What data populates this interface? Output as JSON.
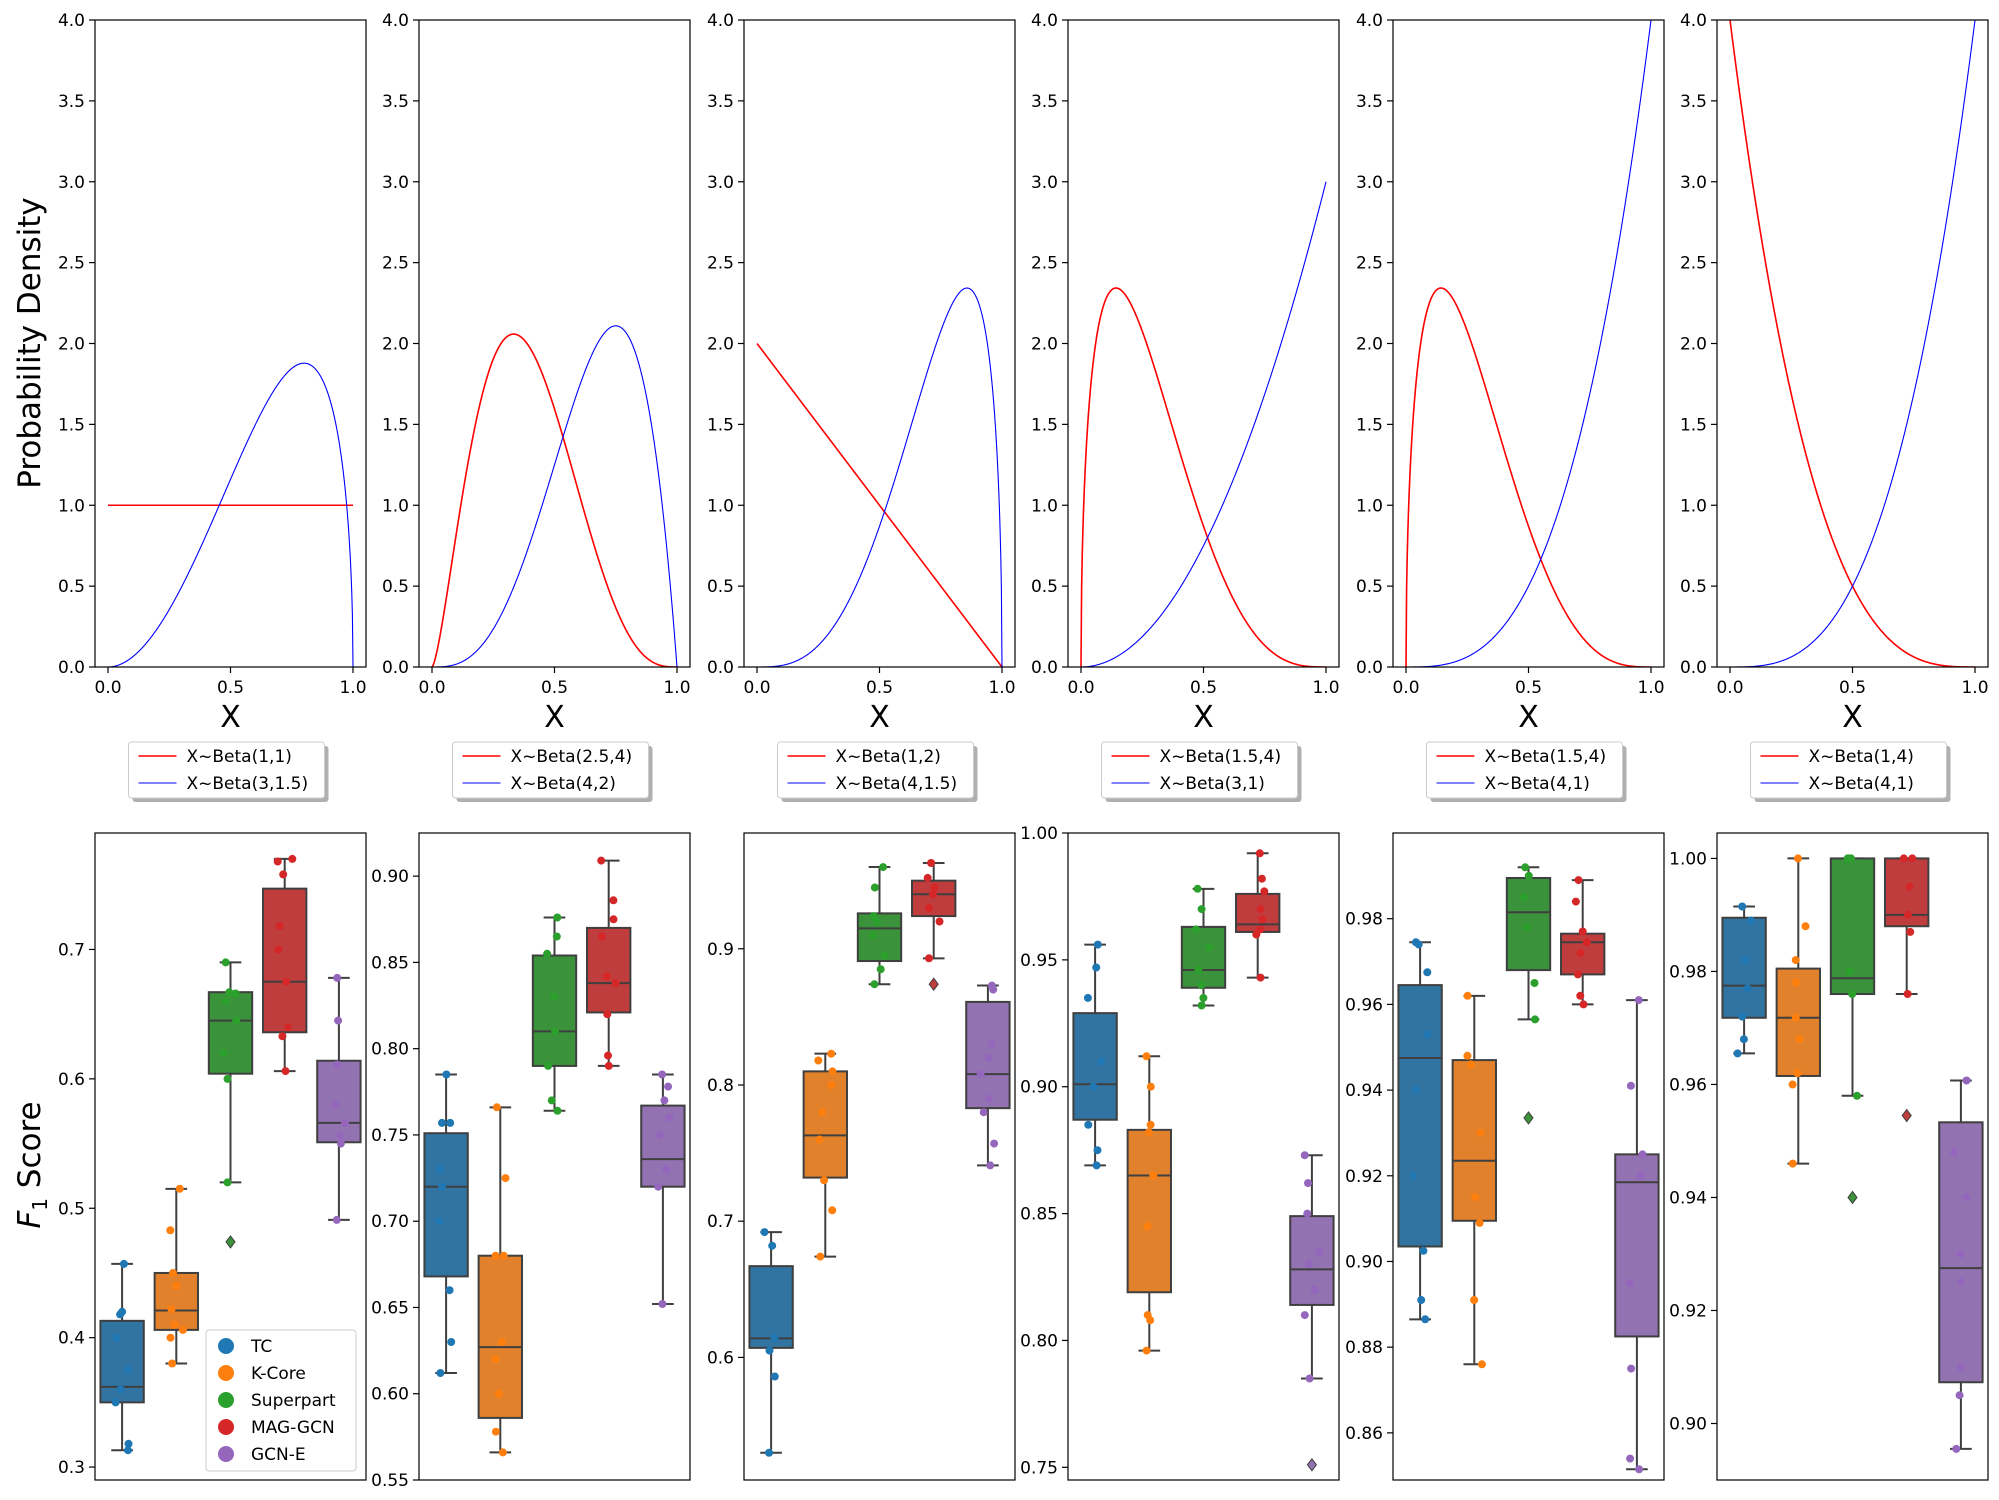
{
  "figure": {
    "ylabel_top": "Probability Density",
    "ylabel_bottom_main": "F",
    "ylabel_bottom_sub": "1",
    "ylabel_bottom_rest": " Score",
    "colors": {
      "red": "#ff0000",
      "blue": "#0000ff",
      "TC": "#1f77b4",
      "K-Core": "#ff7f0e",
      "Superpart": "#2ca02c",
      "MAG-GCN": "#d62728",
      "GCN-E": "#9467bd"
    },
    "box_legend": [
      "TC",
      "K-Core",
      "Superpart",
      "MAG-GCN",
      "GCN-E"
    ]
  },
  "chart_data": [
    {
      "type": "line",
      "xlabel": "X",
      "xlim": [
        0,
        1
      ],
      "ylim": [
        0,
        4
      ],
      "xticks": [
        "0.0",
        "0.5",
        "1.0"
      ],
      "yticks": [
        "0.0",
        "0.5",
        "1.0",
        "1.5",
        "2.0",
        "2.5",
        "3.0",
        "3.5",
        "4.0"
      ],
      "series": [
        {
          "name": "X~Beta(1,1)",
          "a": 1,
          "b": 1,
          "color": "red"
        },
        {
          "name": "X~Beta(3,1.5)",
          "a": 3,
          "b": 1.5,
          "color": "blue"
        }
      ]
    },
    {
      "type": "line",
      "xlabel": "X",
      "xlim": [
        0,
        1
      ],
      "ylim": [
        0,
        4
      ],
      "xticks": [
        "0.0",
        "0.5",
        "1.0"
      ],
      "yticks": [
        "0.0",
        "0.5",
        "1.0",
        "1.5",
        "2.0",
        "2.5",
        "3.0",
        "3.5",
        "4.0"
      ],
      "series": [
        {
          "name": "X~Beta(2.5,4)",
          "a": 2.5,
          "b": 4,
          "color": "red"
        },
        {
          "name": "X~Beta(4,2)",
          "a": 4,
          "b": 2,
          "color": "blue"
        }
      ]
    },
    {
      "type": "line",
      "xlabel": "X",
      "xlim": [
        0,
        1
      ],
      "ylim": [
        0,
        4
      ],
      "xticks": [
        "0.0",
        "0.5",
        "1.0"
      ],
      "yticks": [
        "0.0",
        "0.5",
        "1.0",
        "1.5",
        "2.0",
        "2.5",
        "3.0",
        "3.5",
        "4.0"
      ],
      "series": [
        {
          "name": "X~Beta(1,2)",
          "a": 1,
          "b": 2,
          "color": "red"
        },
        {
          "name": "X~Beta(4,1.5)",
          "a": 4,
          "b": 1.5,
          "color": "blue"
        }
      ]
    },
    {
      "type": "line",
      "xlabel": "X",
      "xlim": [
        0,
        1
      ],
      "ylim": [
        0,
        4
      ],
      "xticks": [
        "0.0",
        "0.5",
        "1.0"
      ],
      "yticks": [
        "0.0",
        "0.5",
        "1.0",
        "1.5",
        "2.0",
        "2.5",
        "3.0",
        "3.5",
        "4.0"
      ],
      "series": [
        {
          "name": "X~Beta(1.5,4)",
          "a": 1.5,
          "b": 4,
          "color": "red"
        },
        {
          "name": "X~Beta(3,1)",
          "a": 3,
          "b": 1,
          "color": "blue"
        }
      ]
    },
    {
      "type": "line",
      "xlabel": "X",
      "xlim": [
        0,
        1
      ],
      "ylim": [
        0,
        4
      ],
      "xticks": [
        "0.0",
        "0.5",
        "1.0"
      ],
      "yticks": [
        "0.0",
        "0.5",
        "1.0",
        "1.5",
        "2.0",
        "2.5",
        "3.0",
        "3.5",
        "4.0"
      ],
      "series": [
        {
          "name": "X~Beta(1.5,4)",
          "a": 1.5,
          "b": 4,
          "color": "red"
        },
        {
          "name": "X~Beta(4,1)",
          "a": 4,
          "b": 1,
          "color": "blue"
        }
      ]
    },
    {
      "type": "line",
      "xlabel": "X",
      "xlim": [
        0,
        1
      ],
      "ylim": [
        0,
        4
      ],
      "xticks": [
        "0.0",
        "0.5",
        "1.0"
      ],
      "yticks": [
        "0.0",
        "0.5",
        "1.0",
        "1.5",
        "2.0",
        "2.5",
        "3.0",
        "3.5",
        "4.0"
      ],
      "series": [
        {
          "name": "X~Beta(1,4)",
          "a": 1,
          "b": 4,
          "color": "red"
        },
        {
          "name": "X~Beta(4,1)",
          "a": 4,
          "b": 1,
          "color": "blue"
        }
      ]
    },
    {
      "type": "box",
      "ylim": [
        0.29,
        0.79
      ],
      "yticks": [
        "0.3",
        "0.4",
        "0.5",
        "0.6",
        "0.7"
      ],
      "ytick_values": [
        0.3,
        0.4,
        0.5,
        0.6,
        0.7
      ],
      "categories": [
        "TC",
        "K-Core",
        "Superpart",
        "MAG-GCN",
        "GCN-E"
      ],
      "boxes": [
        {
          "q1": 0.35,
          "median": 0.362,
          "q3": 0.413,
          "whislo": 0.313,
          "whishi": 0.457,
          "outliers": [],
          "points": [
            0.313,
            0.318,
            0.35,
            0.36,
            0.375,
            0.4,
            0.418,
            0.42,
            0.457
          ]
        },
        {
          "q1": 0.406,
          "median": 0.421,
          "q3": 0.45,
          "whislo": 0.38,
          "whishi": 0.515,
          "outliers": [],
          "points": [
            0.38,
            0.4,
            0.406,
            0.41,
            0.422,
            0.44,
            0.45,
            0.483,
            0.515
          ]
        },
        {
          "q1": 0.604,
          "median": 0.645,
          "q3": 0.667,
          "whislo": 0.52,
          "whishi": 0.69,
          "outliers": [
            0.474
          ],
          "points": [
            0.52,
            0.6,
            0.62,
            0.645,
            0.66,
            0.666,
            0.667,
            0.69
          ]
        },
        {
          "q1": 0.636,
          "median": 0.675,
          "q3": 0.747,
          "whislo": 0.606,
          "whishi": 0.77,
          "outliers": [],
          "points": [
            0.606,
            0.633,
            0.64,
            0.675,
            0.7,
            0.718,
            0.758,
            0.768,
            0.77
          ]
        },
        {
          "q1": 0.551,
          "median": 0.566,
          "q3": 0.614,
          "whislo": 0.491,
          "whishi": 0.678,
          "outliers": [],
          "points": [
            0.491,
            0.55,
            0.556,
            0.566,
            0.58,
            0.611,
            0.645,
            0.678
          ]
        }
      ]
    },
    {
      "type": "box",
      "ylim": [
        0.55,
        0.925
      ],
      "yticks": [
        "0.55",
        "0.60",
        "0.65",
        "0.70",
        "0.75",
        "0.80",
        "0.85",
        "0.90"
      ],
      "ytick_values": [
        0.55,
        0.6,
        0.65,
        0.7,
        0.75,
        0.8,
        0.85,
        0.9
      ],
      "categories": [
        "TC",
        "K-Core",
        "Superpart",
        "MAG-GCN",
        "GCN-E"
      ],
      "boxes": [
        {
          "q1": 0.668,
          "median": 0.72,
          "q3": 0.751,
          "whislo": 0.612,
          "whishi": 0.785,
          "outliers": [],
          "points": [
            0.612,
            0.63,
            0.66,
            0.7,
            0.72,
            0.73,
            0.757,
            0.757,
            0.785
          ]
        },
        {
          "q1": 0.586,
          "median": 0.627,
          "q3": 0.68,
          "whislo": 0.566,
          "whishi": 0.766,
          "outliers": [],
          "points": [
            0.566,
            0.578,
            0.6,
            0.62,
            0.63,
            0.68,
            0.68,
            0.725,
            0.766
          ]
        },
        {
          "q1": 0.79,
          "median": 0.81,
          "q3": 0.854,
          "whislo": 0.764,
          "whishi": 0.876,
          "outliers": [],
          "points": [
            0.764,
            0.77,
            0.79,
            0.81,
            0.83,
            0.855,
            0.865,
            0.876
          ]
        },
        {
          "q1": 0.821,
          "median": 0.838,
          "q3": 0.87,
          "whislo": 0.79,
          "whishi": 0.909,
          "outliers": [],
          "points": [
            0.79,
            0.796,
            0.82,
            0.838,
            0.842,
            0.865,
            0.875,
            0.886,
            0.909
          ]
        },
        {
          "q1": 0.72,
          "median": 0.736,
          "q3": 0.767,
          "whislo": 0.652,
          "whishi": 0.785,
          "outliers": [],
          "points": [
            0.652,
            0.72,
            0.73,
            0.75,
            0.76,
            0.77,
            0.778,
            0.785
          ]
        }
      ]
    },
    {
      "type": "box",
      "ylim": [
        0.51,
        0.985
      ],
      "yticks": [
        "0.6",
        "0.7",
        "0.8",
        "0.9"
      ],
      "ytick_values": [
        0.6,
        0.7,
        0.8,
        0.9
      ],
      "categories": [
        "TC",
        "K-Core",
        "Superpart",
        "MAG-GCN",
        "GCN-E"
      ],
      "boxes": [
        {
          "q1": 0.607,
          "median": 0.614,
          "q3": 0.667,
          "whislo": 0.53,
          "whishi": 0.692,
          "outliers": [],
          "points": [
            0.53,
            0.586,
            0.605,
            0.614,
            0.682,
            0.692
          ]
        },
        {
          "q1": 0.732,
          "median": 0.763,
          "q3": 0.81,
          "whislo": 0.674,
          "whishi": 0.823,
          "outliers": [],
          "points": [
            0.674,
            0.708,
            0.73,
            0.76,
            0.78,
            0.8,
            0.81,
            0.818,
            0.823
          ]
        },
        {
          "q1": 0.891,
          "median": 0.915,
          "q3": 0.926,
          "whislo": 0.874,
          "whishi": 0.96,
          "outliers": [],
          "points": [
            0.874,
            0.885,
            0.895,
            0.91,
            0.92,
            0.924,
            0.945,
            0.96
          ]
        },
        {
          "q1": 0.924,
          "median": 0.94,
          "q3": 0.95,
          "whislo": 0.893,
          "whishi": 0.963,
          "outliers": [
            0.874
          ],
          "points": [
            0.893,
            0.92,
            0.93,
            0.94,
            0.945,
            0.952,
            0.963
          ]
        },
        {
          "q1": 0.783,
          "median": 0.808,
          "q3": 0.861,
          "whislo": 0.741,
          "whishi": 0.873,
          "outliers": [],
          "points": [
            0.741,
            0.757,
            0.78,
            0.79,
            0.808,
            0.82,
            0.83,
            0.87,
            0.873
          ]
        }
      ]
    },
    {
      "type": "box",
      "ylim": [
        0.745,
        1.0
      ],
      "yticks": [
        "0.75",
        "0.80",
        "0.85",
        "0.90",
        "0.95",
        "1.00"
      ],
      "ytick_values": [
        0.75,
        0.8,
        0.85,
        0.9,
        0.95,
        1.0
      ],
      "categories": [
        "TC",
        "K-Core",
        "Superpart",
        "MAG-GCN",
        "GCN-E"
      ],
      "boxes": [
        {
          "q1": 0.887,
          "median": 0.901,
          "q3": 0.929,
          "whislo": 0.869,
          "whishi": 0.956,
          "outliers": [],
          "points": [
            0.869,
            0.875,
            0.885,
            0.9,
            0.91,
            0.935,
            0.947,
            0.956
          ]
        },
        {
          "q1": 0.819,
          "median": 0.865,
          "q3": 0.883,
          "whislo": 0.796,
          "whishi": 0.912,
          "outliers": [],
          "points": [
            0.796,
            0.808,
            0.81,
            0.845,
            0.865,
            0.882,
            0.885,
            0.9,
            0.912
          ]
        },
        {
          "q1": 0.939,
          "median": 0.946,
          "q3": 0.963,
          "whislo": 0.932,
          "whishi": 0.978,
          "outliers": [],
          "points": [
            0.932,
            0.935,
            0.94,
            0.946,
            0.955,
            0.962,
            0.97,
            0.978
          ]
        },
        {
          "q1": 0.961,
          "median": 0.964,
          "q3": 0.976,
          "whislo": 0.943,
          "whishi": 0.992,
          "outliers": [],
          "points": [
            0.943,
            0.96,
            0.962,
            0.966,
            0.97,
            0.977,
            0.982,
            0.992
          ]
        },
        {
          "q1": 0.814,
          "median": 0.828,
          "q3": 0.849,
          "whislo": 0.785,
          "whishi": 0.873,
          "outliers": [
            0.751
          ],
          "points": [
            0.785,
            0.81,
            0.82,
            0.83,
            0.835,
            0.85,
            0.862,
            0.873
          ]
        }
      ]
    },
    {
      "type": "box",
      "ylim": [
        0.849,
        1.0
      ],
      "yticks": [
        "0.86",
        "0.88",
        "0.90",
        "0.92",
        "0.94",
        "0.96",
        "0.98"
      ],
      "ytick_values": [
        0.86,
        0.88,
        0.9,
        0.92,
        0.94,
        0.96,
        0.98
      ],
      "categories": [
        "TC",
        "K-Core",
        "Superpart",
        "MAG-GCN",
        "GCN-E"
      ],
      "boxes": [
        {
          "q1": 0.9035,
          "median": 0.9475,
          "q3": 0.9645,
          "whislo": 0.8865,
          "whishi": 0.9745,
          "outliers": [],
          "points": [
            0.8865,
            0.891,
            0.9025,
            0.92,
            0.94,
            0.953,
            0.9675,
            0.974,
            0.9745
          ]
        },
        {
          "q1": 0.9095,
          "median": 0.9235,
          "q3": 0.947,
          "whislo": 0.876,
          "whishi": 0.962,
          "outliers": [],
          "points": [
            0.876,
            0.891,
            0.909,
            0.915,
            0.93,
            0.946,
            0.948,
            0.962
          ]
        },
        {
          "q1": 0.968,
          "median": 0.9815,
          "q3": 0.9895,
          "whislo": 0.9565,
          "whishi": 0.992,
          "outliers": [
            0.9335
          ],
          "points": [
            0.9565,
            0.965,
            0.978,
            0.985,
            0.99,
            0.992
          ]
        },
        {
          "q1": 0.967,
          "median": 0.9745,
          "q3": 0.9765,
          "whislo": 0.96,
          "whishi": 0.989,
          "outliers": [],
          "points": [
            0.96,
            0.962,
            0.967,
            0.972,
            0.9745,
            0.977,
            0.984,
            0.989
          ]
        },
        {
          "q1": 0.8825,
          "median": 0.9185,
          "q3": 0.925,
          "whislo": 0.8515,
          "whishi": 0.961,
          "outliers": [],
          "points": [
            0.8515,
            0.854,
            0.875,
            0.895,
            0.92,
            0.925,
            0.941,
            0.961
          ]
        }
      ]
    },
    {
      "type": "box",
      "ylim": [
        0.89,
        1.0045
      ],
      "yticks": [
        "0.90",
        "0.92",
        "0.94",
        "0.96",
        "0.98",
        "1.00"
      ],
      "ytick_values": [
        0.9,
        0.92,
        0.94,
        0.96,
        0.98,
        1.0
      ],
      "categories": [
        "TC",
        "K-Core",
        "Superpart",
        "MAG-GCN",
        "GCN-E"
      ],
      "boxes": [
        {
          "q1": 0.9718,
          "median": 0.9775,
          "q3": 0.9895,
          "whislo": 0.9655,
          "whishi": 0.9915,
          "outliers": [],
          "points": [
            0.9655,
            0.968,
            0.972,
            0.977,
            0.982,
            0.989,
            0.9915
          ]
        },
        {
          "q1": 0.9615,
          "median": 0.9718,
          "q3": 0.9805,
          "whislo": 0.946,
          "whishi": 1.0,
          "outliers": [],
          "points": [
            0.946,
            0.96,
            0.962,
            0.968,
            0.9718,
            0.978,
            0.982,
            0.988,
            1.0
          ]
        },
        {
          "q1": 0.976,
          "median": 0.9788,
          "q3": 1.0,
          "whislo": 0.958,
          "whishi": 1.0,
          "outliers": [
            0.94
          ],
          "points": [
            0.958,
            0.976,
            0.98,
            1.0,
            1.0,
            1.0
          ]
        },
        {
          "q1": 0.988,
          "median": 0.99,
          "q3": 1.0,
          "whislo": 0.976,
          "whishi": 1.0,
          "outliers": [
            0.9545
          ],
          "points": [
            0.976,
            0.987,
            0.99,
            0.995,
            1.0,
            1.0
          ]
        },
        {
          "q1": 0.9073,
          "median": 0.9275,
          "q3": 0.9533,
          "whislo": 0.8955,
          "whishi": 0.9607,
          "outliers": [],
          "points": [
            0.8955,
            0.905,
            0.91,
            0.925,
            0.93,
            0.94,
            0.948,
            0.9607
          ]
        }
      ]
    }
  ]
}
